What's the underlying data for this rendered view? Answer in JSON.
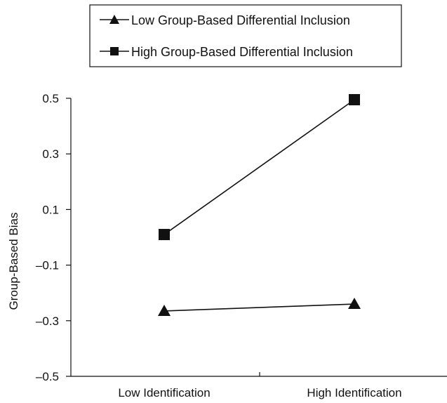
{
  "chart_data": {
    "type": "line",
    "x_categories": [
      "Low Identification",
      "High Identification"
    ],
    "ylabel": "Group-Based Bias",
    "ylim": [
      -0.5,
      0.5
    ],
    "yticks": [
      0.5,
      0.3,
      0.1,
      -0.1,
      -0.3,
      -0.5
    ],
    "ytick_labels": [
      "0.5",
      "0.3",
      "0.1",
      "–0.1",
      "–0.3",
      "–0.5"
    ],
    "grid": false,
    "legend_position": "top-center",
    "series": [
      {
        "name": "Low Group-Based Differential Inclusion",
        "marker": "triangle",
        "values": [
          -0.265,
          -0.24
        ]
      },
      {
        "name": "High Group-Based Differential Inclusion",
        "marker": "square",
        "values": [
          0.01,
          0.495
        ]
      }
    ]
  }
}
